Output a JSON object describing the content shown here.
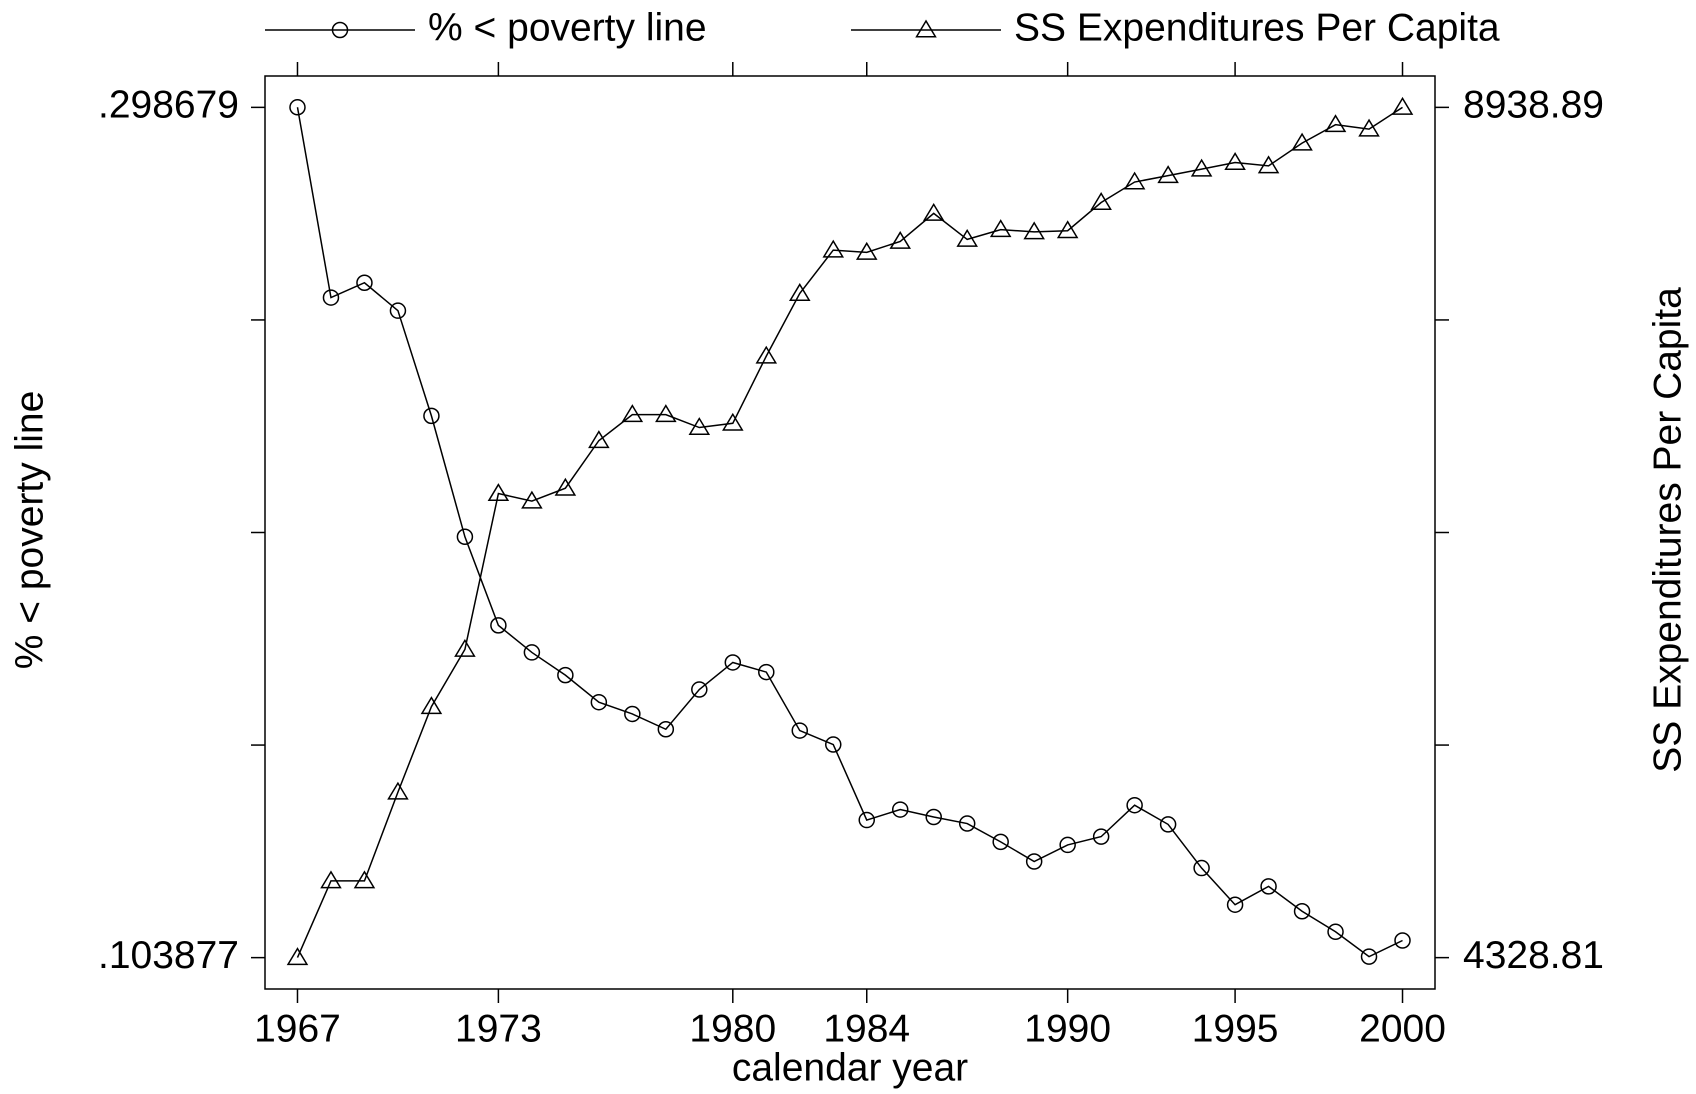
{
  "chart_data": {
    "type": "line",
    "x_label": "calendar year",
    "y_label": "% < poverty line",
    "y2_label": "SS Expenditures Per Capita",
    "legend": "top",
    "x": [
      1967,
      1968,
      1969,
      1970,
      1971,
      1972,
      1973,
      1974,
      1975,
      1976,
      1977,
      1978,
      1979,
      1980,
      1981,
      1982,
      1983,
      1984,
      1985,
      1986,
      1987,
      1988,
      1989,
      1990,
      1991,
      1992,
      1993,
      1994,
      1995,
      1996,
      1997,
      1998,
      1999,
      2000
    ],
    "series": [
      {
        "name": "% < poverty line",
        "color": "#000000",
        "marker": "circle",
        "values": [
          0.2987,
          0.2551,
          0.2585,
          0.2521,
          0.228,
          0.2003,
          0.18,
          0.1738,
          0.1686,
          0.1624,
          0.1597,
          0.1562,
          0.1653,
          0.1715,
          0.1693,
          0.1559,
          0.1527,
          0.1354,
          0.1378,
          0.1361,
          0.1346,
          0.1304,
          0.1259,
          0.1297,
          0.1316,
          0.1388,
          0.1344,
          0.1244,
          0.116,
          0.1202,
          0.1145,
          0.1098,
          0.1041,
          0.1078
        ]
      },
      {
        "name": "SS Expenditures Per Capita",
        "color": "#000000",
        "marker": "triangle",
        "axis": "y2",
        "values": [
          4329,
          4745,
          4745,
          5226,
          5690,
          6000,
          6845,
          6804,
          6874,
          7132,
          7273,
          7273,
          7203,
          7226,
          7590,
          7930,
          8165,
          8153,
          8212,
          8364,
          8223,
          8276,
          8264,
          8270,
          8423,
          8534,
          8569,
          8604,
          8640,
          8622,
          8745,
          8845,
          8821,
          8939
        ]
      }
    ],
    "xlim": [
      1966.03,
      2000.97
    ],
    "xticks": [
      1967,
      1973,
      1980,
      1984,
      1990,
      1995,
      2000
    ],
    "ylim": [
      0.09669,
      0.305866
    ],
    "yticks": [
      {
        "value": 0.103877,
        "label": ".103877"
      },
      {
        "value": 0.298679,
        "label": ".298679"
      }
    ],
    "yticks_unlabeled": [
      0.1525775,
      0.201278,
      0.2499785
    ],
    "y2lim": [
      4158.72,
      9108.98
    ],
    "y2ticks": [
      4328.81,
      8938.89
    ],
    "y2ticks_unlabeled": [
      5481.33,
      6633.85,
      7786.37
    ]
  }
}
